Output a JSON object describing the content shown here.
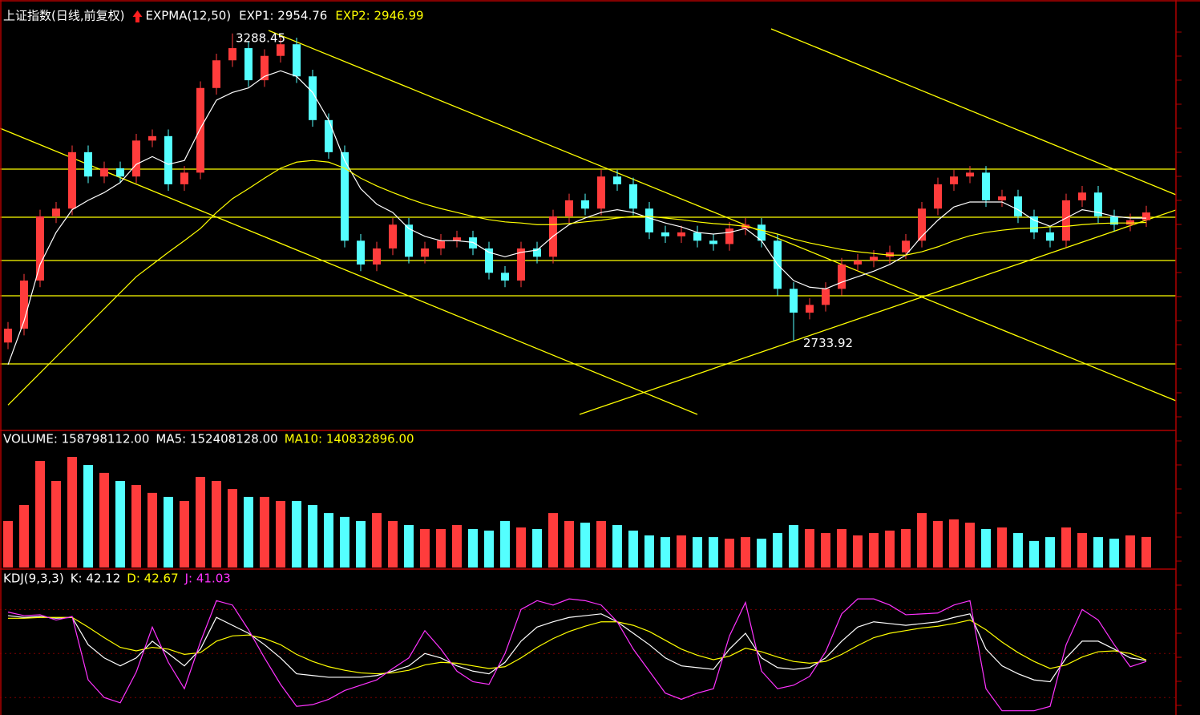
{
  "chart_data": [
    {
      "type": "candlestick",
      "title": "上证指数(日线,前复权)",
      "indicator": "EXPMA(12,50)",
      "ylim": [
        2574,
        3349
      ],
      "up_color": "#ff3c3c",
      "down_color": "#54ffff",
      "candles": [
        [
          2730,
          2767,
          2718,
          2755
        ],
        [
          2755,
          2854,
          2743,
          2842
        ],
        [
          2842,
          2970,
          2830,
          2958
        ],
        [
          2958,
          2984,
          2946,
          2972
        ],
        [
          2972,
          3086,
          2960,
          3074
        ],
        [
          3074,
          3086,
          3018,
          3030
        ],
        [
          3030,
          3057,
          3018,
          3045
        ],
        [
          3045,
          3057,
          3018,
          3030
        ],
        [
          3030,
          3107,
          3018,
          3095
        ],
        [
          3095,
          3115,
          3083,
          3103
        ],
        [
          3103,
          3115,
          3004,
          3016
        ],
        [
          3016,
          3049,
          3004,
          3037
        ],
        [
          3037,
          3202,
          3025,
          3190
        ],
        [
          3190,
          3252,
          3178,
          3240
        ],
        [
          3240,
          3288.45,
          3228,
          3262
        ],
        [
          3262,
          3274,
          3192,
          3204
        ],
        [
          3204,
          3260,
          3192,
          3248
        ],
        [
          3248,
          3281,
          3236,
          3269
        ],
        [
          3269,
          3281,
          3199,
          3211
        ],
        [
          3211,
          3223,
          3120,
          3132
        ],
        [
          3132,
          3144,
          3062,
          3074
        ],
        [
          3074,
          3086,
          2902,
          2914
        ],
        [
          2914,
          2926,
          2859,
          2871
        ],
        [
          2871,
          2912,
          2859,
          2900
        ],
        [
          2900,
          2955,
          2888,
          2943
        ],
        [
          2943,
          2955,
          2873,
          2885
        ],
        [
          2885,
          2912,
          2873,
          2900
        ],
        [
          2900,
          2926,
          2888,
          2914
        ],
        [
          2914,
          2932,
          2902,
          2920
        ],
        [
          2920,
          2932,
          2888,
          2900
        ],
        [
          2900,
          2912,
          2844,
          2856
        ],
        [
          2856,
          2868,
          2830,
          2842
        ],
        [
          2842,
          2912,
          2830,
          2900
        ],
        [
          2900,
          2912,
          2873,
          2885
        ],
        [
          2885,
          2970,
          2873,
          2958
        ],
        [
          2958,
          2999,
          2946,
          2987
        ],
        [
          2987,
          2999,
          2960,
          2972
        ],
        [
          2972,
          3042,
          2960,
          3030
        ],
        [
          3030,
          3042,
          3004,
          3016
        ],
        [
          3016,
          3028,
          2960,
          2972
        ],
        [
          2972,
          2984,
          2917,
          2929
        ],
        [
          2929,
          2941,
          2910,
          2922
        ],
        [
          2922,
          2941,
          2910,
          2929
        ],
        [
          2929,
          2941,
          2902,
          2914
        ],
        [
          2914,
          2926,
          2896,
          2908
        ],
        [
          2908,
          2948,
          2896,
          2936
        ],
        [
          2936,
          2955,
          2924,
          2943
        ],
        [
          2943,
          2955,
          2902,
          2914
        ],
        [
          2914,
          2926,
          2815,
          2827
        ],
        [
          2827,
          2839,
          2733.92,
          2784
        ],
        [
          2784,
          2810,
          2772,
          2798
        ],
        [
          2798,
          2839,
          2786,
          2827
        ],
        [
          2827,
          2883,
          2815,
          2871
        ],
        [
          2871,
          2890,
          2859,
          2878
        ],
        [
          2878,
          2897,
          2866,
          2885
        ],
        [
          2885,
          2905,
          2873,
          2893
        ],
        [
          2893,
          2926,
          2881,
          2914
        ],
        [
          2914,
          2984,
          2902,
          2972
        ],
        [
          2972,
          3028,
          2960,
          3016
        ],
        [
          3016,
          3042,
          3004,
          3030
        ],
        [
          3030,
          3049,
          3018,
          3037
        ],
        [
          3037,
          3049,
          2975,
          2987
        ],
        [
          2987,
          3006,
          2975,
          2994
        ],
        [
          2994,
          3006,
          2946,
          2958
        ],
        [
          2958,
          2970,
          2917,
          2929
        ],
        [
          2929,
          2941,
          2902,
          2914
        ],
        [
          2914,
          2999,
          2902,
          2987
        ],
        [
          2987,
          3013,
          2975,
          3001
        ],
        [
          3001,
          3013,
          2946,
          2958
        ],
        [
          2958,
          2970,
          2931,
          2943
        ],
        [
          2943,
          2963,
          2931,
          2951
        ],
        [
          2951,
          2977,
          2939,
          2965
        ]
      ],
      "series": [
        {
          "name": "EXP1: 2954.76",
          "color": "#ffffff",
          "values": [
            2690,
            2769,
            2871,
            2929,
            2970,
            2987,
            3001,
            3019,
            3052,
            3066,
            3052,
            3059,
            3117,
            3168,
            3182,
            3190,
            3211,
            3221,
            3211,
            3182,
            3132,
            3059,
            3008,
            2980,
            2965,
            2936,
            2922,
            2914,
            2914,
            2911,
            2893,
            2885,
            2893,
            2897,
            2922,
            2943,
            2955,
            2965,
            2970,
            2965,
            2955,
            2946,
            2939,
            2929,
            2926,
            2929,
            2936,
            2914,
            2871,
            2842,
            2830,
            2827,
            2839,
            2849,
            2859,
            2871,
            2888,
            2922,
            2951,
            2975,
            2984,
            2984,
            2984,
            2970,
            2951,
            2940,
            2955,
            2970,
            2965,
            2958,
            2955,
            2954.76
          ]
        },
        {
          "name": "EXP2: 2946.99",
          "color": "#ffff00",
          "values": [
            2617,
            2646,
            2675,
            2704,
            2733,
            2762,
            2791,
            2820,
            2849,
            2871,
            2893,
            2914,
            2936,
            2965,
            2990,
            3008,
            3027,
            3045,
            3056,
            3059,
            3056,
            3045,
            3027,
            3013,
            3001,
            2990,
            2980,
            2972,
            2965,
            2958,
            2952,
            2948,
            2946,
            2943,
            2943,
            2945,
            2948,
            2951,
            2955,
            2958,
            2958,
            2955,
            2952,
            2948,
            2945,
            2943,
            2940,
            2933,
            2926,
            2917,
            2910,
            2904,
            2898,
            2894,
            2891,
            2888,
            2888,
            2894,
            2903,
            2914,
            2923,
            2929,
            2933,
            2936,
            2937,
            2939,
            2940,
            2943,
            2945,
            2946,
            2946,
            2946.99
          ]
        }
      ]
    },
    {
      "type": "bar",
      "ylim": [
        0,
        700000000
      ],
      "legend": [
        {
          "name": "VOLUME: 158798112.00",
          "color": "#ffffff"
        },
        {
          "name": "MA5: 152408128.00",
          "color": "#ffffff"
        },
        {
          "name": "MA10: 140832896.00",
          "color": "#ffff00"
        }
      ],
      "values": [
        242000000,
        325000000,
        554000000,
        450000000,
        575000000,
        533000000,
        492000000,
        450000000,
        429000000,
        388000000,
        367000000,
        346000000,
        471000000,
        450000000,
        408000000,
        367000000,
        367000000,
        346000000,
        346000000,
        325000000,
        283000000,
        263000000,
        242000000,
        283000000,
        242000000,
        221000000,
        200000000,
        200000000,
        221000000,
        200000000,
        192000000,
        242000000,
        208000000,
        200000000,
        283000000,
        242000000,
        233000000,
        242000000,
        221000000,
        192000000,
        167000000,
        158000000,
        167000000,
        158000000,
        158000000,
        150000000,
        158000000,
        150000000,
        179000000,
        221000000,
        200000000,
        179000000,
        200000000,
        167000000,
        179000000,
        192000000,
        200000000,
        283000000,
        242000000,
        250000000,
        233000000,
        200000000,
        208000000,
        179000000,
        138000000,
        158000000,
        208000000,
        179000000,
        158000000,
        150000000,
        167000000,
        158798112
      ]
    },
    {
      "type": "line",
      "title": "KDJ(9,3,3)",
      "ylim": [
        -18,
        144
      ],
      "series": [
        {
          "name": "K: 42.12",
          "color": "#ffffff",
          "values": [
            93,
            91,
            92,
            90,
            91,
            60,
            45,
            36,
            45,
            64,
            50,
            36,
            55,
            91,
            82,
            73,
            60,
            45,
            27,
            25,
            23,
            23,
            23,
            25,
            30,
            36,
            50,
            45,
            36,
            30,
            27,
            40,
            64,
            80,
            86,
            91,
            93,
            95,
            86,
            73,
            60,
            45,
            36,
            34,
            32,
            55,
            73,
            45,
            34,
            32,
            34,
            45,
            64,
            80,
            86,
            84,
            82,
            84,
            86,
            91,
            95,
            55,
            36,
            27,
            20,
            18,
            45,
            64,
            64,
            55,
            45,
            42.12
          ]
        },
        {
          "name": "D: 42.67",
          "color": "#ffff00",
          "values": [
            90,
            90,
            91,
            91,
            91,
            80,
            68,
            57,
            53,
            57,
            55,
            49,
            51,
            64,
            70,
            71,
            67,
            60,
            49,
            41,
            35,
            31,
            28,
            27,
            28,
            31,
            37,
            40,
            39,
            36,
            33,
            35,
            45,
            57,
            67,
            75,
            81,
            86,
            86,
            82,
            75,
            65,
            55,
            48,
            43,
            47,
            56,
            52,
            46,
            41,
            39,
            41,
            49,
            59,
            68,
            73,
            76,
            79,
            81,
            84,
            88,
            77,
            63,
            51,
            41,
            33,
            37,
            46,
            52,
            53,
            50,
            42.67
          ]
        },
        {
          "name": "J: 41.03",
          "color": "#ff33ff",
          "values": [
            97,
            93,
            94,
            88,
            92,
            20,
            0,
            -6,
            29,
            80,
            40,
            10,
            63,
            110,
            105,
            77,
            45,
            15,
            -10,
            -8,
            -2,
            8,
            14,
            20,
            33,
            45,
            76,
            55,
            30,
            18,
            15,
            50,
            100,
            110,
            105,
            112,
            110,
            105,
            86,
            55,
            30,
            5,
            -2,
            5,
            10,
            70,
            108,
            30,
            10,
            14,
            24,
            52,
            95,
            112,
            112,
            105,
            94,
            95,
            96,
            105,
            110,
            10,
            -15,
            -15,
            -15,
            -10,
            60,
            100,
            88,
            60,
            35,
            41.03
          ]
        }
      ]
    }
  ]
}
